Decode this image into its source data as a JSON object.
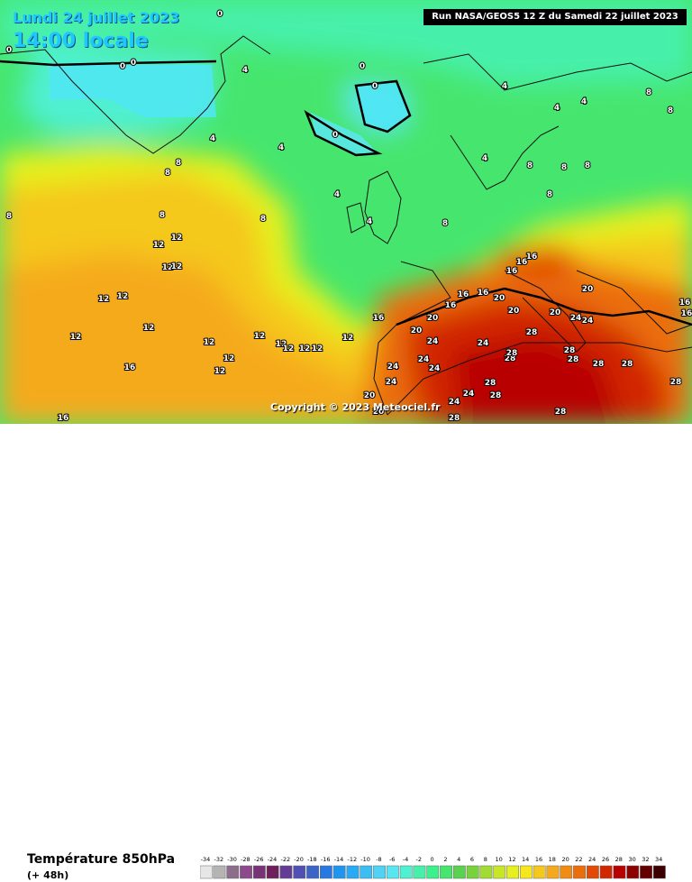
{
  "map": {
    "title_date": "Lundi 24 juillet 2023",
    "title_time": "14:00 locale",
    "run_info": "Run NASA/GEOS5 12 Z du Samedi 22 juillet 2023",
    "copyright": "Copyright © 2023 Meteociel.fr",
    "variable": "Température 850hPa",
    "lead_time": "(+ 48h)",
    "contour_labels": [
      "0",
      "0",
      "0",
      "0",
      "0",
      "0",
      "0",
      "4",
      "4",
      "4",
      "4",
      "4",
      "4",
      "4",
      "4",
      "4",
      "8",
      "8",
      "8",
      "8",
      "8",
      "8",
      "8",
      "8",
      "8",
      "8",
      "8",
      "8",
      "12",
      "12",
      "12",
      "12",
      "12",
      "12",
      "12",
      "12",
      "12",
      "12",
      "12",
      "12",
      "12",
      "12",
      "12",
      "12",
      "12",
      "16",
      "16",
      "16",
      "16",
      "16",
      "16",
      "16",
      "16",
      "16",
      "16",
      "16",
      "20",
      "20",
      "20",
      "20",
      "20",
      "20",
      "20",
      "20",
      "24",
      "24",
      "24",
      "24",
      "24",
      "24",
      "24",
      "24",
      "24",
      "24",
      "28",
      "28",
      "28",
      "28",
      "28",
      "28",
      "28",
      "28",
      "28",
      "28",
      "28",
      "28",
      "28",
      "28",
      "28",
      "28"
    ]
  },
  "legend": {
    "ticks": [
      "-34",
      "-32",
      "-30",
      "-28",
      "-26",
      "-24",
      "-22",
      "-20",
      "-18",
      "-16",
      "-14",
      "-12",
      "-10",
      "-8",
      "-6",
      "-4",
      "-2",
      "0",
      "2",
      "4",
      "6",
      "8",
      "10",
      "12",
      "14",
      "16",
      "18",
      "20",
      "22",
      "24",
      "26",
      "28",
      "30",
      "32",
      "34"
    ],
    "colors": [
      "#e6e6e6",
      "#b4b4b4",
      "#8c6e8c",
      "#8c4a8c",
      "#783278",
      "#6e1e5a",
      "#643c96",
      "#5050b4",
      "#3c64c8",
      "#2878e1",
      "#1e96f0",
      "#28aaf5",
      "#3cbef5",
      "#50d2f5",
      "#5ae6f0",
      "#50f0d2",
      "#46f0aa",
      "#3cf08c",
      "#46e66e",
      "#5ad250",
      "#78d23c",
      "#a0dc32",
      "#c8e628",
      "#e6f01e",
      "#f5e61e",
      "#f5c81e",
      "#f5aa1e",
      "#f08c14",
      "#eb6e0a",
      "#e14b05",
      "#d22800",
      "#b90000",
      "#8c0000",
      "#640000",
      "#3c0000"
    ]
  }
}
